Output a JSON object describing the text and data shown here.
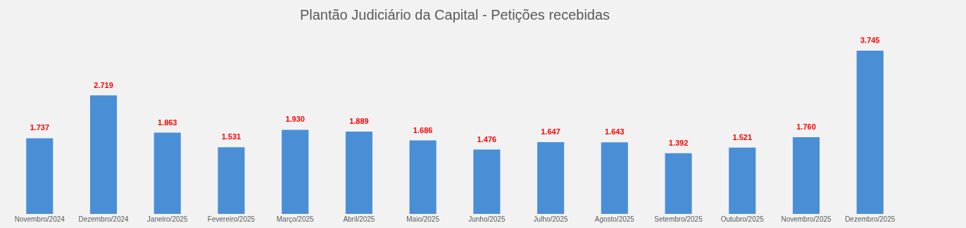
{
  "chart_data": {
    "type": "bar",
    "title": "Plantão Judiciário da Capital - Petições recebidas",
    "categories": [
      "Novembro/2024",
      "Dezembro/2024",
      "Janeiro/2025",
      "Fevereiro/2025",
      "Março/2025",
      "Abril/2025",
      "Maio/2025",
      "Junho/2025",
      "Julho/2025",
      "Agosto/2025",
      "Setembro/2025",
      "Outubro/2025",
      "Novembro/2025",
      "Dezembro/2025"
    ],
    "values": [
      1737,
      2719,
      1863,
      1531,
      1930,
      1889,
      1686,
      1476,
      1647,
      1643,
      1392,
      1521,
      1760,
      3745
    ],
    "value_labels": [
      "1.737",
      "2.719",
      "1.863",
      "1.531",
      "1.930",
      "1.889",
      "1.686",
      "1.476",
      "1.647",
      "1.643",
      "1.392",
      "1.521",
      "1.760",
      "3.745"
    ],
    "color": "#4a8fd6",
    "grid": false
  }
}
